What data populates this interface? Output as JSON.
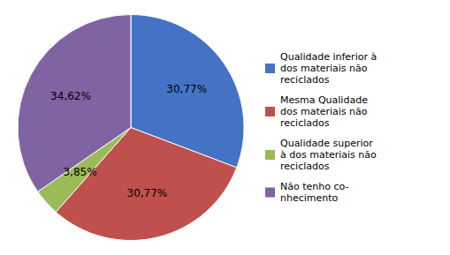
{
  "chart_data": {
    "type": "pie",
    "categories": [
      "Qualidade inferior à\ndos materiais não\nreciclados",
      "Mesma Qualidade\ndos materiais não\nreciclados",
      "Qualidade superior\nà dos materiais não\nreciclados",
      "Não tenho co-\nnhecimento"
    ],
    "values": [
      30.77,
      30.77,
      3.85,
      34.62
    ],
    "value_labels": [
      "30,77%",
      "30,77%",
      "3,85%",
      "34,62%"
    ],
    "colors": [
      "#4472C4",
      "#C0504D",
      "#9BBB59",
      "#8064A2"
    ],
    "data_labels": true,
    "legend": "right"
  }
}
